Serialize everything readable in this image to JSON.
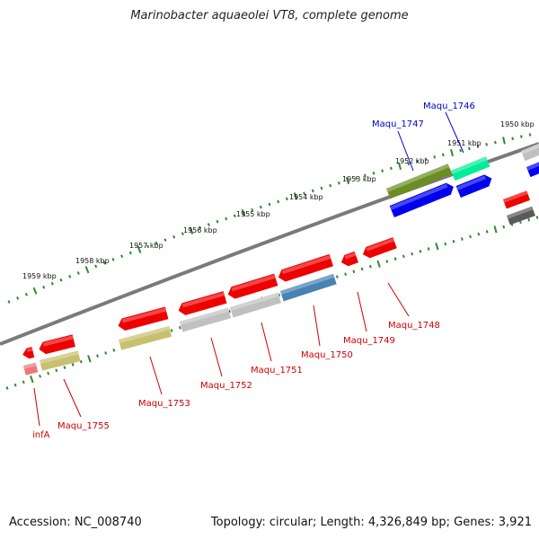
{
  "title": "Marinobacter aquaeolei VT8, complete genome",
  "footer": {
    "accession": "Accession: NC_008740",
    "topology": "Topology: circular; Length: 4,326,849 bp; Genes: 3,921"
  },
  "ruler": {
    "tick_color": "#2e8b2e",
    "labels": [
      "1959 kbp",
      "1958 kbp",
      "1957 kbp",
      "1956 kbp",
      "1955 kbp",
      "1954 kbp",
      "1953 kbp",
      "1952 kbp",
      "1951 kbp",
      "1950 kbp"
    ]
  },
  "colors": {
    "backbone": "#7a7a7a",
    "forward_label": "#0000cc",
    "reverse_label": "#cc0000",
    "red": "#ee0000",
    "blue": "#0000ee",
    "olive": "#6b8e23",
    "teal": "#00ee99",
    "khaki": "#c8c070",
    "silver": "#c0c0c0",
    "steel": "#4682b4",
    "dark_gray": "#5a5a5a",
    "pink": "#ee7777"
  },
  "genes": [
    {
      "name": "Maqu_1746",
      "strand": "forward",
      "color_key": "blue"
    },
    {
      "name": "Maqu_1747",
      "strand": "forward",
      "color_key": "blue"
    },
    {
      "name": "Maqu_1748",
      "strand": "reverse",
      "color_key": "red"
    },
    {
      "name": "Maqu_1749",
      "strand": "reverse",
      "color_key": "red"
    },
    {
      "name": "Maqu_1750",
      "strand": "reverse",
      "color_key": "red"
    },
    {
      "name": "Maqu_1751",
      "strand": "reverse",
      "color_key": "red"
    },
    {
      "name": "Maqu_1752",
      "strand": "reverse",
      "color_key": "red"
    },
    {
      "name": "Maqu_1753",
      "strand": "reverse",
      "color_key": "red"
    },
    {
      "name": "Maqu_1755",
      "strand": "reverse",
      "color_key": "red"
    },
    {
      "name": "infA",
      "strand": "reverse",
      "color_key": "red"
    }
  ]
}
